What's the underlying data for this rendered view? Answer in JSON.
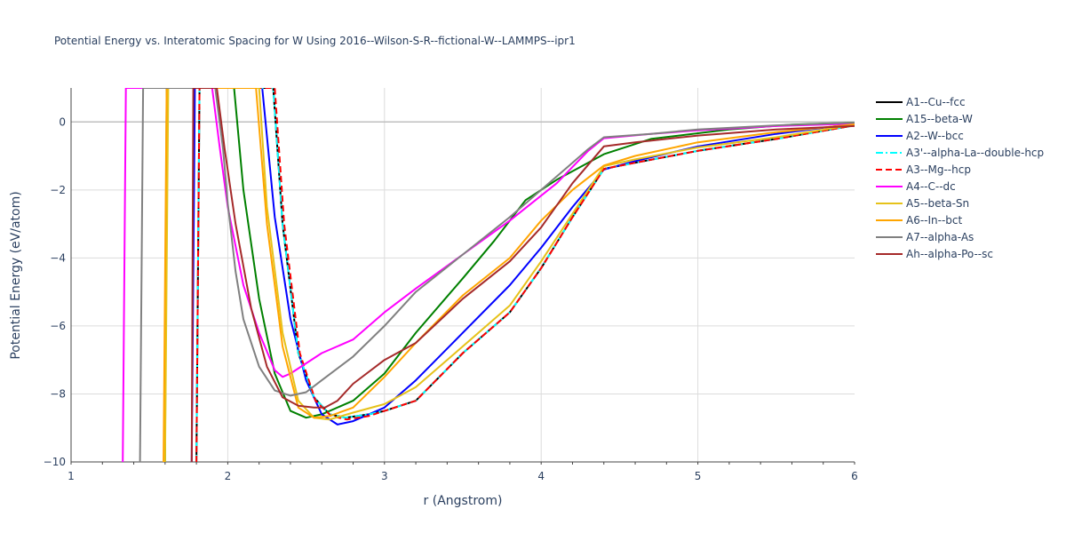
{
  "chart_data": {
    "type": "line",
    "title": "Potential Energy vs. Interatomic Spacing for W Using 2016--Wilson-S-R--fictional-W--LAMMPS--ipr1",
    "xlabel": "r (Angstrom)",
    "ylabel": "Potential Energy (eV/atom)",
    "xlim": [
      1,
      6
    ],
    "ylim": [
      -10,
      1
    ],
    "xticks": [
      1,
      2,
      3,
      4,
      5,
      6
    ],
    "yticks": [
      0,
      -2,
      -4,
      -6,
      -8,
      -10
    ],
    "xtick_labels": [
      "1",
      "2",
      "3",
      "4",
      "5",
      "6"
    ],
    "ytick_labels": [
      "0",
      "−2",
      "−4",
      "−6",
      "−8",
      "−10"
    ],
    "grid": true,
    "legend_position": "right",
    "series": [
      {
        "name": "A1--Cu--fcc",
        "color": "#000000",
        "dash": "solid",
        "points": [
          [
            1.8,
            -10
          ],
          [
            1.82,
            1
          ],
          [
            2.29,
            1
          ],
          [
            2.35,
            -3
          ],
          [
            2.45,
            -6.8
          ],
          [
            2.55,
            -8.1
          ],
          [
            2.65,
            -8.6
          ],
          [
            2.75,
            -8.7
          ],
          [
            2.9,
            -8.6
          ],
          [
            3.0,
            -8.5
          ],
          [
            3.2,
            -8.2
          ],
          [
            3.5,
            -6.8
          ],
          [
            3.8,
            -5.6
          ],
          [
            4.0,
            -4.3
          ],
          [
            4.2,
            -2.8
          ],
          [
            4.4,
            -1.38
          ],
          [
            4.6,
            -1.2
          ],
          [
            5.0,
            -0.85
          ],
          [
            5.5,
            -0.5
          ],
          [
            6.0,
            -0.1
          ]
        ]
      },
      {
        "name": "A15--beta-W",
        "color": "#008000",
        "dash": "solid",
        "points": [
          [
            1.6,
            -10
          ],
          [
            1.61,
            1
          ],
          [
            2.04,
            1
          ],
          [
            2.1,
            -2.0
          ],
          [
            2.2,
            -5.2
          ],
          [
            2.3,
            -7.4
          ],
          [
            2.4,
            -8.5
          ],
          [
            2.5,
            -8.7
          ],
          [
            2.6,
            -8.6
          ],
          [
            2.8,
            -8.2
          ],
          [
            3.0,
            -7.4
          ],
          [
            3.2,
            -6.2
          ],
          [
            3.5,
            -4.6
          ],
          [
            3.7,
            -3.5
          ],
          [
            3.9,
            -2.3
          ],
          [
            4.1,
            -1.7
          ],
          [
            4.4,
            -0.95
          ],
          [
            4.7,
            -0.5
          ],
          [
            5.2,
            -0.22
          ],
          [
            5.6,
            -0.08
          ],
          [
            6.0,
            -0.02
          ]
        ]
      },
      {
        "name": "A2--W--bcc",
        "color": "#0000ff",
        "dash": "solid",
        "points": [
          [
            1.77,
            -10
          ],
          [
            1.79,
            1
          ],
          [
            2.22,
            1
          ],
          [
            2.3,
            -2.8
          ],
          [
            2.4,
            -5.8
          ],
          [
            2.5,
            -7.6
          ],
          [
            2.6,
            -8.6
          ],
          [
            2.7,
            -8.9
          ],
          [
            2.8,
            -8.8
          ],
          [
            3.0,
            -8.4
          ],
          [
            3.2,
            -7.6
          ],
          [
            3.5,
            -6.2
          ],
          [
            3.8,
            -4.8
          ],
          [
            4.0,
            -3.7
          ],
          [
            4.2,
            -2.5
          ],
          [
            4.4,
            -1.4
          ],
          [
            4.6,
            -1.15
          ],
          [
            5.0,
            -0.72
          ],
          [
            5.5,
            -0.35
          ],
          [
            6.0,
            -0.05
          ]
        ]
      },
      {
        "name": "A3'--alpha-La--double-hcp",
        "color": "#00ffff",
        "dash": "dashdot",
        "points": [
          [
            1.8,
            -10
          ],
          [
            1.82,
            1
          ],
          [
            2.29,
            1
          ],
          [
            2.35,
            -3
          ],
          [
            2.45,
            -6.8
          ],
          [
            2.55,
            -8.1
          ],
          [
            2.65,
            -8.6
          ],
          [
            2.75,
            -8.7
          ],
          [
            2.9,
            -8.6
          ],
          [
            3.0,
            -8.5
          ],
          [
            3.2,
            -8.2
          ],
          [
            3.5,
            -6.8
          ],
          [
            3.8,
            -5.6
          ],
          [
            4.0,
            -4.3
          ],
          [
            4.2,
            -2.8
          ],
          [
            4.4,
            -1.38
          ],
          [
            4.6,
            -1.2
          ],
          [
            5.0,
            -0.85
          ],
          [
            5.5,
            -0.5
          ],
          [
            6.0,
            -0.1
          ]
        ]
      },
      {
        "name": "A3--Mg--hcp",
        "color": "#ff0000",
        "dash": "dash",
        "points": [
          [
            1.8,
            -10
          ],
          [
            1.82,
            1
          ],
          [
            2.3,
            1
          ],
          [
            2.36,
            -3
          ],
          [
            2.46,
            -6.8
          ],
          [
            2.56,
            -8.2
          ],
          [
            2.66,
            -8.65
          ],
          [
            2.76,
            -8.75
          ],
          [
            2.9,
            -8.65
          ],
          [
            3.0,
            -8.5
          ],
          [
            3.2,
            -8.2
          ],
          [
            3.5,
            -6.8
          ],
          [
            3.8,
            -5.6
          ],
          [
            4.0,
            -4.3
          ],
          [
            4.2,
            -2.8
          ],
          [
            4.4,
            -1.38
          ],
          [
            4.6,
            -1.2
          ],
          [
            5.0,
            -0.85
          ],
          [
            5.5,
            -0.5
          ],
          [
            6.0,
            -0.1
          ]
        ]
      },
      {
        "name": "A4--C--dc",
        "color": "#ff00ff",
        "dash": "solid",
        "points": [
          [
            1.33,
            -10
          ],
          [
            1.35,
            1
          ],
          [
            1.9,
            1
          ],
          [
            1.95,
            -0.8
          ],
          [
            2.0,
            -2.5
          ],
          [
            2.1,
            -4.8
          ],
          [
            2.2,
            -6.2
          ],
          [
            2.3,
            -7.3
          ],
          [
            2.35,
            -7.5
          ],
          [
            2.4,
            -7.4
          ],
          [
            2.5,
            -7.1
          ],
          [
            2.6,
            -6.8
          ],
          [
            2.8,
            -6.4
          ],
          [
            3.0,
            -5.6
          ],
          [
            3.2,
            -4.9
          ],
          [
            3.5,
            -3.9
          ],
          [
            3.8,
            -2.9
          ],
          [
            4.1,
            -1.8
          ],
          [
            4.3,
            -0.85
          ],
          [
            4.4,
            -0.48
          ],
          [
            4.7,
            -0.35
          ],
          [
            5.0,
            -0.25
          ],
          [
            5.5,
            -0.12
          ],
          [
            6.0,
            -0.05
          ]
        ]
      },
      {
        "name": "A5--beta-Sn",
        "color": "#e6c21a",
        "dash": "solid",
        "points": [
          [
            1.6,
            -10
          ],
          [
            1.62,
            1
          ],
          [
            2.2,
            1
          ],
          [
            2.25,
            -2.5
          ],
          [
            2.35,
            -6.2
          ],
          [
            2.45,
            -8.2
          ],
          [
            2.55,
            -8.7
          ],
          [
            2.65,
            -8.75
          ],
          [
            2.8,
            -8.55
          ],
          [
            3.0,
            -8.3
          ],
          [
            3.2,
            -7.8
          ],
          [
            3.5,
            -6.6
          ],
          [
            3.8,
            -5.4
          ],
          [
            4.0,
            -4.1
          ],
          [
            4.2,
            -2.7
          ],
          [
            4.4,
            -1.3
          ],
          [
            4.6,
            -1.1
          ],
          [
            5.0,
            -0.75
          ],
          [
            5.5,
            -0.45
          ],
          [
            6.0,
            -0.08
          ]
        ]
      },
      {
        "name": "A6--In--bct",
        "color": "#ffa500",
        "dash": "solid",
        "points": [
          [
            1.59,
            -10
          ],
          [
            1.61,
            1
          ],
          [
            2.18,
            1
          ],
          [
            2.25,
            -3.0
          ],
          [
            2.35,
            -6.6
          ],
          [
            2.45,
            -8.4
          ],
          [
            2.55,
            -8.7
          ],
          [
            2.65,
            -8.65
          ],
          [
            2.8,
            -8.4
          ],
          [
            3.0,
            -7.5
          ],
          [
            3.2,
            -6.5
          ],
          [
            3.5,
            -5.1
          ],
          [
            3.8,
            -4.0
          ],
          [
            4.0,
            -2.9
          ],
          [
            4.2,
            -2.0
          ],
          [
            4.4,
            -1.28
          ],
          [
            4.6,
            -1.0
          ],
          [
            5.0,
            -0.6
          ],
          [
            5.5,
            -0.3
          ],
          [
            6.0,
            -0.07
          ]
        ]
      },
      {
        "name": "A7--alpha-As",
        "color": "#808080",
        "dash": "solid",
        "points": [
          [
            1.44,
            -10
          ],
          [
            1.46,
            1
          ],
          [
            1.92,
            1
          ],
          [
            1.97,
            -0.8
          ],
          [
            2.0,
            -2.4
          ],
          [
            2.05,
            -4.4
          ],
          [
            2.1,
            -5.8
          ],
          [
            2.2,
            -7.2
          ],
          [
            2.3,
            -7.9
          ],
          [
            2.4,
            -8.05
          ],
          [
            2.5,
            -7.95
          ],
          [
            2.6,
            -7.6
          ],
          [
            2.8,
            -6.9
          ],
          [
            3.0,
            -6.0
          ],
          [
            3.2,
            -5.0
          ],
          [
            3.5,
            -3.9
          ],
          [
            3.8,
            -2.8
          ],
          [
            4.1,
            -1.6
          ],
          [
            4.3,
            -0.8
          ],
          [
            4.4,
            -0.45
          ],
          [
            4.7,
            -0.35
          ],
          [
            5.0,
            -0.22
          ],
          [
            5.5,
            -0.1
          ],
          [
            6.0,
            -0.02
          ]
        ]
      },
      {
        "name": "Ah--alpha-Po--sc",
        "color": "#a52a2a",
        "dash": "solid",
        "points": [
          [
            1.77,
            -10
          ],
          [
            1.78,
            1
          ],
          [
            1.93,
            1
          ],
          [
            1.98,
            -0.8
          ],
          [
            2.05,
            -3.0
          ],
          [
            2.15,
            -5.5
          ],
          [
            2.25,
            -7.2
          ],
          [
            2.35,
            -8.1
          ],
          [
            2.45,
            -8.35
          ],
          [
            2.55,
            -8.4
          ],
          [
            2.62,
            -8.4
          ],
          [
            2.7,
            -8.2
          ],
          [
            2.8,
            -7.7
          ],
          [
            3.0,
            -7.0
          ],
          [
            3.2,
            -6.5
          ],
          [
            3.5,
            -5.2
          ],
          [
            3.8,
            -4.1
          ],
          [
            4.0,
            -3.1
          ],
          [
            4.2,
            -1.8
          ],
          [
            4.4,
            -0.72
          ],
          [
            4.6,
            -0.6
          ],
          [
            5.0,
            -0.4
          ],
          [
            5.5,
            -0.22
          ],
          [
            6.0,
            -0.12
          ]
        ]
      }
    ]
  }
}
